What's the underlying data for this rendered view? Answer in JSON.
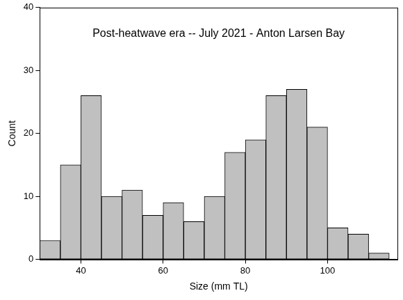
{
  "chart_data": {
    "type": "histogram",
    "title": "Post-heatwave era -- July 2021 - Anton Larsen Bay",
    "x_label": "Size (mm TL)",
    "y_label": "Count",
    "bins": [
      30,
      35,
      40,
      45,
      50,
      55,
      60,
      65,
      70,
      75,
      80,
      85,
      90,
      95,
      100,
      105,
      110,
      115
    ],
    "values": [
      3,
      15,
      26,
      10,
      11,
      7,
      9,
      6,
      10,
      17,
      19,
      26,
      27,
      21,
      5,
      4,
      1
    ],
    "color": "#c0c0c0",
    "xlim": [
      30,
      117
    ],
    "ylim": [
      0,
      40
    ],
    "xticks": [
      40,
      60,
      80,
      100
    ],
    "yticks": [
      0,
      10,
      20,
      30,
      40
    ],
    "grid": false
  }
}
